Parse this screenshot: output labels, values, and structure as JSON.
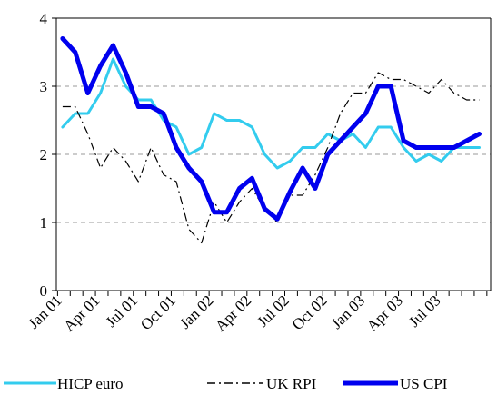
{
  "chart_data": {
    "type": "line",
    "title": "",
    "xlabel": "",
    "ylabel": "",
    "ylim": [
      0,
      4
    ],
    "yticks": [
      "0",
      "1",
      "2",
      "3",
      "4"
    ],
    "grid": "horizontal dashed",
    "legend_position": "bottom",
    "x_tick_labels": [
      "Jan 01",
      "Apr 01",
      "Jul 01",
      "Oct 01",
      "Jan 02",
      "Apr 02",
      "Jul 02",
      "Oct 02",
      "Jan 03",
      "Apr 03",
      "Jul 03"
    ],
    "x": [
      "Jan 01",
      "Feb 01",
      "Mar 01",
      "Apr 01",
      "May 01",
      "Jun 01",
      "Jul 01",
      "Aug 01",
      "Sep 01",
      "Oct 01",
      "Nov 01",
      "Dec 01",
      "Jan 02",
      "Feb 02",
      "Mar 02",
      "Apr 02",
      "May 02",
      "Jun 02",
      "Jul 02",
      "Aug 02",
      "Sep 02",
      "Oct 02",
      "Nov 02",
      "Dec 02",
      "Jan 03",
      "Feb 03",
      "Mar 03",
      "Apr 03",
      "May 03",
      "Jun 03",
      "Jul 03",
      "Aug 03",
      "Sep 03",
      "Oct 03"
    ],
    "series": [
      {
        "name": "HICP euro",
        "color": "#33ccee",
        "style": "solid-thin",
        "values": [
          2.4,
          2.6,
          2.6,
          2.9,
          3.4,
          3.0,
          2.8,
          2.8,
          2.5,
          2.4,
          2.0,
          2.1,
          2.6,
          2.5,
          2.5,
          2.4,
          2.0,
          1.8,
          1.9,
          2.1,
          2.1,
          2.3,
          2.2,
          2.3,
          2.1,
          2.4,
          2.4,
          2.1,
          1.9,
          2.0,
          1.9,
          2.1,
          2.1,
          2.1
        ]
      },
      {
        "name": "UK RPI",
        "color": "#000000",
        "style": "dashdot",
        "values": [
          2.7,
          2.7,
          2.3,
          1.8,
          2.1,
          1.9,
          1.6,
          2.1,
          1.7,
          1.6,
          0.9,
          0.7,
          1.3,
          1.0,
          1.3,
          1.5,
          1.2,
          1.0,
          1.4,
          1.4,
          1.7,
          2.1,
          2.6,
          2.9,
          2.9,
          3.2,
          3.1,
          3.1,
          3.0,
          2.9,
          3.1,
          2.9,
          2.8,
          2.8
        ]
      },
      {
        "name": "US CPI",
        "color": "#0000ee",
        "style": "solid-thick",
        "values": [
          3.7,
          3.5,
          2.9,
          3.3,
          3.6,
          3.2,
          2.7,
          2.7,
          2.6,
          2.1,
          1.8,
          1.6,
          1.15,
          1.15,
          1.5,
          1.65,
          1.2,
          1.05,
          1.45,
          1.8,
          1.5,
          2.0,
          2.2,
          2.4,
          2.6,
          3.0,
          3.0,
          2.2,
          2.1,
          2.1,
          2.1,
          2.1,
          2.2,
          2.3
        ]
      }
    ]
  }
}
